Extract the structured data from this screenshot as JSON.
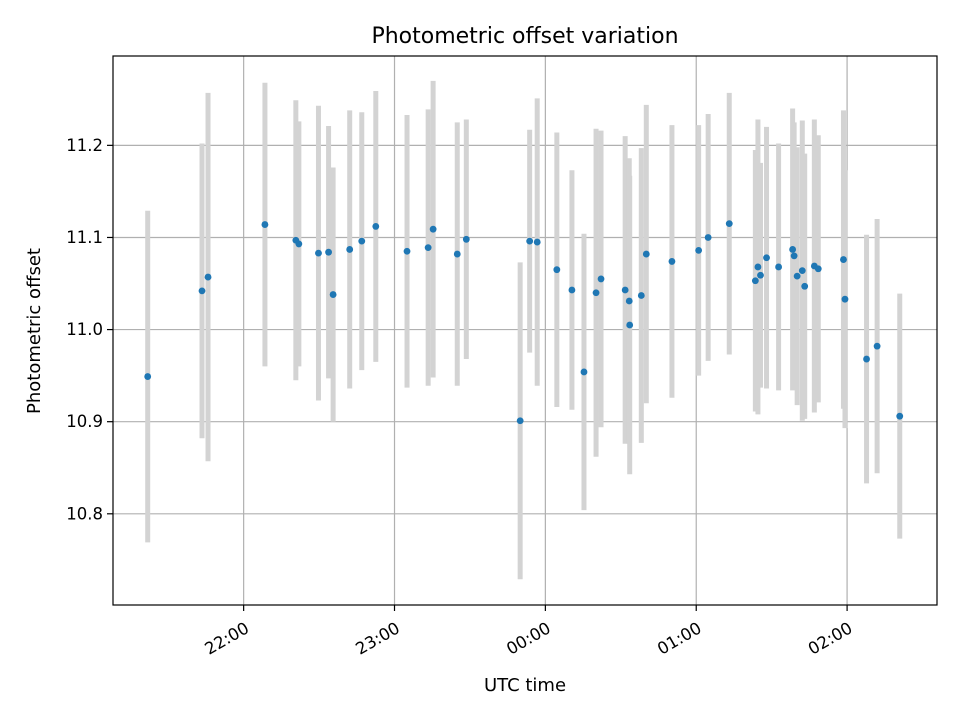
{
  "chart_data": {
    "type": "scatter",
    "title": "Photometric offset variation",
    "xlabel": "UTC time",
    "ylabel": "Photometric offset",
    "x_ticks": [
      {
        "value": 22.0,
        "label": "22:00"
      },
      {
        "value": 23.0,
        "label": "23:00"
      },
      {
        "value": 24.0,
        "label": "00:00"
      },
      {
        "value": 25.0,
        "label": "01:00"
      },
      {
        "value": 26.0,
        "label": "02:00"
      }
    ],
    "y_ticks": [
      10.8,
      10.9,
      11.0,
      11.1,
      11.2
    ],
    "xlim": [
      21.134,
      26.596
    ],
    "ylim": [
      10.701,
      11.297
    ],
    "grid": true,
    "point_color": "#1f77b4",
    "errorbar_color": "#d3d3d3",
    "series": [
      {
        "x": [
          21.364,
          21.724,
          21.764,
          22.141,
          22.346,
          22.366,
          22.496,
          22.563,
          22.593,
          22.703,
          22.783,
          22.876,
          23.083,
          23.223,
          23.256,
          23.416,
          23.476,
          23.833,
          23.896,
          23.946,
          24.076,
          24.176,
          24.256,
          24.336,
          24.369,
          24.529,
          24.556,
          24.559,
          24.636,
          24.669,
          24.839,
          25.016,
          25.079,
          25.219,
          25.392,
          25.409,
          25.426,
          25.466,
          25.546,
          25.639,
          25.649,
          25.669,
          25.703,
          25.719,
          25.783,
          25.809,
          25.976,
          25.986,
          26.129,
          26.199,
          26.349
        ],
        "y": [
          10.949,
          11.042,
          11.057,
          11.114,
          11.097,
          11.093,
          11.083,
          11.084,
          11.038,
          11.087,
          11.096,
          11.112,
          11.085,
          11.089,
          11.109,
          11.082,
          11.098,
          10.901,
          11.096,
          11.095,
          11.065,
          11.043,
          10.954,
          11.04,
          11.055,
          11.043,
          11.031,
          11.005,
          11.037,
          11.082,
          11.074,
          11.086,
          11.1,
          11.115,
          11.053,
          11.068,
          11.059,
          11.078,
          11.068,
          11.087,
          11.08,
          11.058,
          11.064,
          11.047,
          11.069,
          11.066,
          11.076,
          11.033,
          10.968,
          10.982,
          10.906
        ],
        "err": [
          0.18,
          0.16,
          0.2,
          0.154,
          0.152,
          0.133,
          0.16,
          0.137,
          0.138,
          0.151,
          0.14,
          0.147,
          0.148,
          0.15,
          0.161,
          0.143,
          0.13,
          0.172,
          0.121,
          0.156,
          0.149,
          0.13,
          0.15,
          0.178,
          0.161,
          0.167,
          0.155,
          0.162,
          0.16,
          0.162,
          0.148,
          0.136,
          0.134,
          0.142,
          0.142,
          0.16,
          0.122,
          0.142,
          0.134,
          0.153,
          0.145,
          0.14,
          0.163,
          0.144,
          0.159,
          0.145,
          0.162,
          0.14,
          0.135,
          0.138,
          0.133
        ]
      }
    ]
  }
}
